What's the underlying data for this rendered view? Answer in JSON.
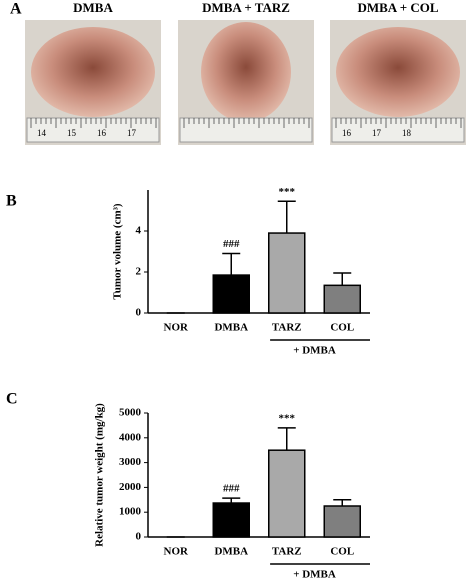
{
  "panel_labels": [
    "A",
    "B",
    "C"
  ],
  "photos": [
    {
      "title": "DMBA",
      "ruler": [
        "14",
        "15",
        "16",
        "17"
      ]
    },
    {
      "title": "DMBA + TARZ",
      "ruler": []
    },
    {
      "title": "DMBA + COL",
      "ruler": [
        "16",
        "17",
        "18"
      ]
    }
  ],
  "chart_data": [
    {
      "type": "bar",
      "y_label": "Tumor volume (cm³)",
      "categories": [
        "NOR",
        "DMBA",
        "TARZ",
        "COL"
      ],
      "values": [
        0,
        1.85,
        3.9,
        1.35
      ],
      "errors": [
        0,
        1.05,
        1.55,
        0.6
      ],
      "colors": [
        "#ffffff",
        "#000000",
        "#a9a9a9",
        "#7f7f7f"
      ],
      "annotations": [
        null,
        "###",
        "***",
        null
      ],
      "group_label": "+ DMBA",
      "ylim": [
        0,
        6
      ],
      "yticks": [
        0,
        2,
        4
      ]
    },
    {
      "type": "bar",
      "y_label": "Relative tumor weight (mg/kg)",
      "categories": [
        "NOR",
        "DMBA",
        "TARZ",
        "COL"
      ],
      "values": [
        0,
        1370,
        3500,
        1250
      ],
      "errors": [
        0,
        200,
        900,
        250
      ],
      "colors": [
        "#ffffff",
        "#000000",
        "#a9a9a9",
        "#7f7f7f"
      ],
      "annotations": [
        null,
        "###",
        "***",
        null
      ],
      "group_label": "+ DMBA",
      "ylim": [
        0,
        5000
      ],
      "yticks": [
        0,
        1000,
        2000,
        3000,
        4000,
        5000
      ]
    }
  ]
}
